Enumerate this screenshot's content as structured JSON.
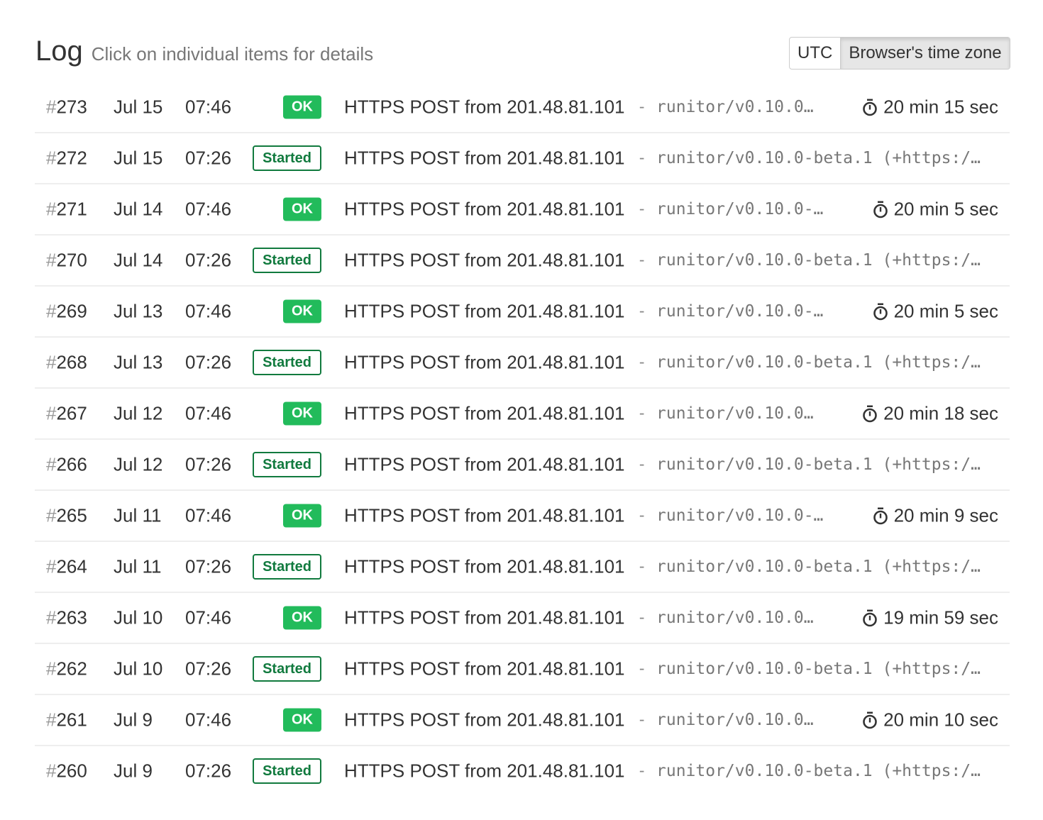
{
  "header": {
    "title": "Log",
    "subtitle": "Click on individual items for details"
  },
  "timezone": {
    "options": [
      "UTC",
      "Browser's time zone"
    ],
    "selected": "Browser's time zone"
  },
  "colors": {
    "ok": "#22bb5b",
    "started": "#117a3e"
  },
  "duration_icon": "stopwatch-icon",
  "separator": "-",
  "rows": [
    {
      "num": "273",
      "date": "Jul 15",
      "time": "07:46",
      "status": "OK",
      "message": "HTTPS POST from 201.48.81.101",
      "ua": "runitor/v0.10.0…",
      "duration": "20 min 15 sec"
    },
    {
      "num": "272",
      "date": "Jul 15",
      "time": "07:26",
      "status": "Started",
      "message": "HTTPS POST from 201.48.81.101",
      "ua": "runitor/v0.10.0-beta.1 (+https:/…",
      "duration": ""
    },
    {
      "num": "271",
      "date": "Jul 14",
      "time": "07:46",
      "status": "OK",
      "message": "HTTPS POST from 201.48.81.101",
      "ua": "runitor/v0.10.0-…",
      "duration": "20 min 5 sec"
    },
    {
      "num": "270",
      "date": "Jul 14",
      "time": "07:26",
      "status": "Started",
      "message": "HTTPS POST from 201.48.81.101",
      "ua": "runitor/v0.10.0-beta.1 (+https:/…",
      "duration": ""
    },
    {
      "num": "269",
      "date": "Jul 13",
      "time": "07:46",
      "status": "OK",
      "message": "HTTPS POST from 201.48.81.101",
      "ua": "runitor/v0.10.0-…",
      "duration": "20 min 5 sec"
    },
    {
      "num": "268",
      "date": "Jul 13",
      "time": "07:26",
      "status": "Started",
      "message": "HTTPS POST from 201.48.81.101",
      "ua": "runitor/v0.10.0-beta.1 (+https:/…",
      "duration": ""
    },
    {
      "num": "267",
      "date": "Jul 12",
      "time": "07:46",
      "status": "OK",
      "message": "HTTPS POST from 201.48.81.101",
      "ua": "runitor/v0.10.0…",
      "duration": "20 min 18 sec"
    },
    {
      "num": "266",
      "date": "Jul 12",
      "time": "07:26",
      "status": "Started",
      "message": "HTTPS POST from 201.48.81.101",
      "ua": "runitor/v0.10.0-beta.1 (+https:/…",
      "duration": ""
    },
    {
      "num": "265",
      "date": "Jul 11",
      "time": "07:46",
      "status": "OK",
      "message": "HTTPS POST from 201.48.81.101",
      "ua": "runitor/v0.10.0-…",
      "duration": "20 min 9 sec"
    },
    {
      "num": "264",
      "date": "Jul 11",
      "time": "07:26",
      "status": "Started",
      "message": "HTTPS POST from 201.48.81.101",
      "ua": "runitor/v0.10.0-beta.1 (+https:/…",
      "duration": ""
    },
    {
      "num": "263",
      "date": "Jul 10",
      "time": "07:46",
      "status": "OK",
      "message": "HTTPS POST from 201.48.81.101",
      "ua": "runitor/v0.10.0…",
      "duration": "19 min 59 sec"
    },
    {
      "num": "262",
      "date": "Jul 10",
      "time": "07:26",
      "status": "Started",
      "message": "HTTPS POST from 201.48.81.101",
      "ua": "runitor/v0.10.0-beta.1 (+https:/…",
      "duration": ""
    },
    {
      "num": "261",
      "date": "Jul 9",
      "time": "07:46",
      "status": "OK",
      "message": "HTTPS POST from 201.48.81.101",
      "ua": "runitor/v0.10.0…",
      "duration": "20 min 10 sec"
    },
    {
      "num": "260",
      "date": "Jul 9",
      "time": "07:26",
      "status": "Started",
      "message": "HTTPS POST from 201.48.81.101",
      "ua": "runitor/v0.10.0-beta.1 (+https:/…",
      "duration": ""
    }
  ]
}
